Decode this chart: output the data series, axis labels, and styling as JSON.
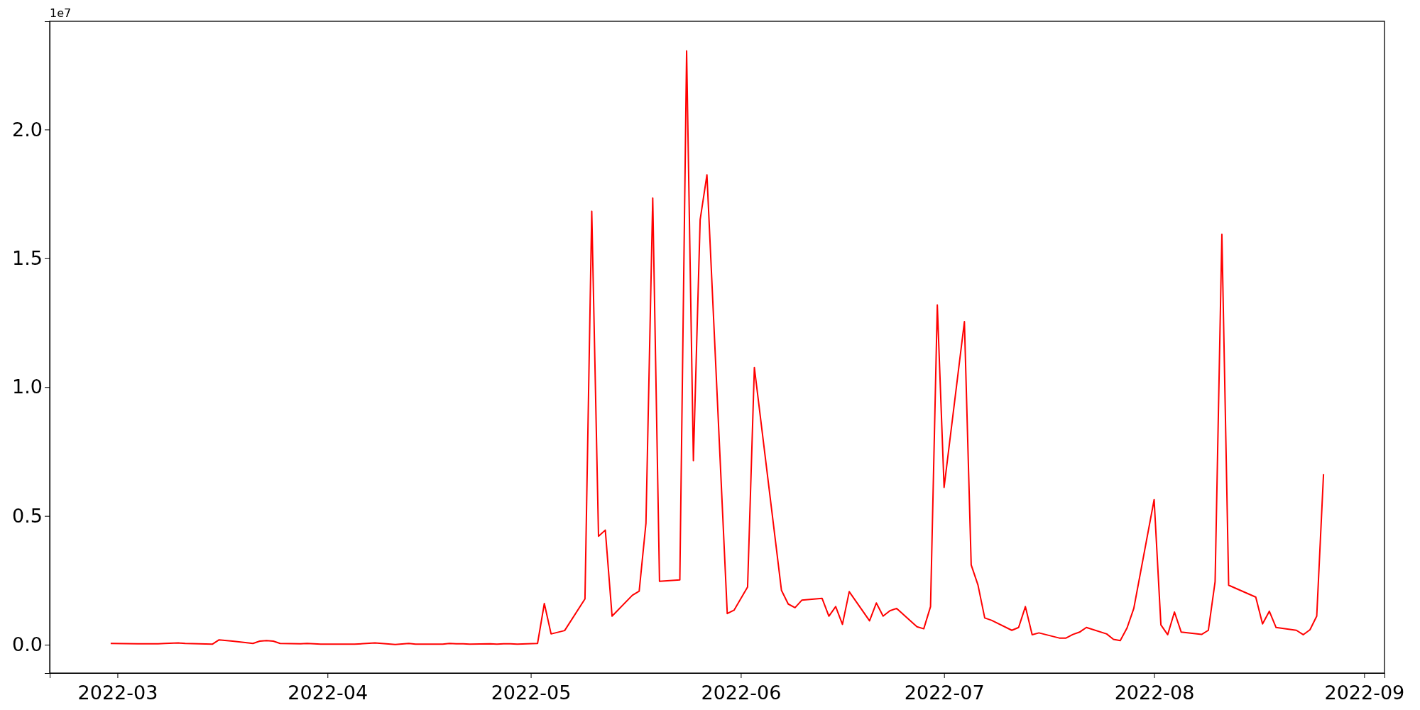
{
  "chart_data": {
    "type": "line",
    "annotations": [
      "1e7"
    ],
    "x": [
      "2022-02-28",
      "2022-03-04",
      "2022-03-07",
      "2022-03-08",
      "2022-03-10",
      "2022-03-11",
      "2022-03-15",
      "2022-03-16",
      "2022-03-18",
      "2022-03-21",
      "2022-03-22",
      "2022-03-23",
      "2022-03-24",
      "2022-03-25",
      "2022-03-28",
      "2022-03-29",
      "2022-03-30",
      "2022-03-31",
      "2022-04-01",
      "2022-04-05",
      "2022-04-08",
      "2022-04-11",
      "2022-04-13",
      "2022-04-14",
      "2022-04-18",
      "2022-04-19",
      "2022-04-20",
      "2022-04-21",
      "2022-04-22",
      "2022-04-25",
      "2022-04-26",
      "2022-04-27",
      "2022-04-28",
      "2022-04-29",
      "2022-05-02",
      "2022-05-03",
      "2022-05-04",
      "2022-05-06",
      "2022-05-09",
      "2022-05-10",
      "2022-05-11",
      "2022-05-12",
      "2022-05-13",
      "2022-05-16",
      "2022-05-17",
      "2022-05-18",
      "2022-05-19",
      "2022-05-20",
      "2022-05-23",
      "2022-05-24",
      "2022-05-25",
      "2022-05-26",
      "2022-05-27",
      "2022-05-30",
      "2022-05-31",
      "2022-06-02",
      "2022-06-03",
      "2022-06-07",
      "2022-06-08",
      "2022-06-09",
      "2022-06-10",
      "2022-06-13",
      "2022-06-14",
      "2022-06-15",
      "2022-06-16",
      "2022-06-17",
      "2022-06-20",
      "2022-06-21",
      "2022-06-22",
      "2022-06-23",
      "2022-06-24",
      "2022-06-27",
      "2022-06-28",
      "2022-06-29",
      "2022-06-30",
      "2022-07-01",
      "2022-07-04",
      "2022-07-05",
      "2022-07-06",
      "2022-07-07",
      "2022-07-08",
      "2022-07-11",
      "2022-07-12",
      "2022-07-13",
      "2022-07-14",
      "2022-07-15",
      "2022-07-18",
      "2022-07-19",
      "2022-07-20",
      "2022-07-21",
      "2022-07-22",
      "2022-07-25",
      "2022-07-26",
      "2022-07-27",
      "2022-07-28",
      "2022-07-29",
      "2022-08-01",
      "2022-08-02",
      "2022-08-03",
      "2022-08-04",
      "2022-08-05",
      "2022-08-08",
      "2022-08-09",
      "2022-08-10",
      "2022-08-11",
      "2022-08-12",
      "2022-08-16",
      "2022-08-17",
      "2022-08-18",
      "2022-08-19",
      "2022-08-22",
      "2022-08-23",
      "2022-08-24",
      "2022-08-25",
      "2022-08-26"
    ],
    "series": [
      {
        "color": "#ff0000",
        "values": [
          0.005,
          0.004,
          0.004,
          0.005,
          0.007,
          0.005,
          0.002,
          0.019,
          0.014,
          0.005,
          0.014,
          0.016,
          0.014,
          0.005,
          0.004,
          0.005,
          0.004,
          0.002,
          0.002,
          0.002,
          0.007,
          0.001,
          0.005,
          0.002,
          0.002,
          0.005,
          0.004,
          0.004,
          0.002,
          0.004,
          0.002,
          0.004,
          0.004,
          0.002,
          0.005,
          0.16,
          0.042,
          0.055,
          0.178,
          1.683,
          0.421,
          0.445,
          0.111,
          0.192,
          0.208,
          0.472,
          1.734,
          0.246,
          0.252,
          2.305,
          0.715,
          1.65,
          1.824,
          0.121,
          0.134,
          0.224,
          1.076,
          0.211,
          0.158,
          0.144,
          0.173,
          0.18,
          0.111,
          0.148,
          0.079,
          0.206,
          0.093,
          0.162,
          0.111,
          0.132,
          0.141,
          0.07,
          0.062,
          0.148,
          1.319,
          0.611,
          1.254,
          0.31,
          0.232,
          0.104,
          0.095,
          0.056,
          0.067,
          0.148,
          0.039,
          0.046,
          0.026,
          0.026,
          0.04,
          0.049,
          0.067,
          0.042,
          0.021,
          0.016,
          0.065,
          0.141,
          0.563,
          0.077,
          0.039,
          0.127,
          0.049,
          0.04,
          0.056,
          0.245,
          1.593,
          0.231,
          0.185,
          0.081,
          0.13,
          0.067,
          0.056,
          0.039,
          0.058,
          0.111,
          0.662
        ]
      }
    ],
    "xlim": [
      "2022-02-19",
      "2022-09-04"
    ],
    "xticks": [
      "2022-03",
      "2022-04",
      "2022-05",
      "2022-06",
      "2022-07",
      "2022-08",
      "2022-09"
    ],
    "ylim": [
      -0.11,
      2.42
    ],
    "yticks": [
      {
        "value": 0,
        "label": "0.0"
      },
      0.5,
      {
        "value": 1,
        "label": "1.0"
      },
      1.5,
      {
        "value": 2,
        "label": "2.0"
      }
    ]
  }
}
